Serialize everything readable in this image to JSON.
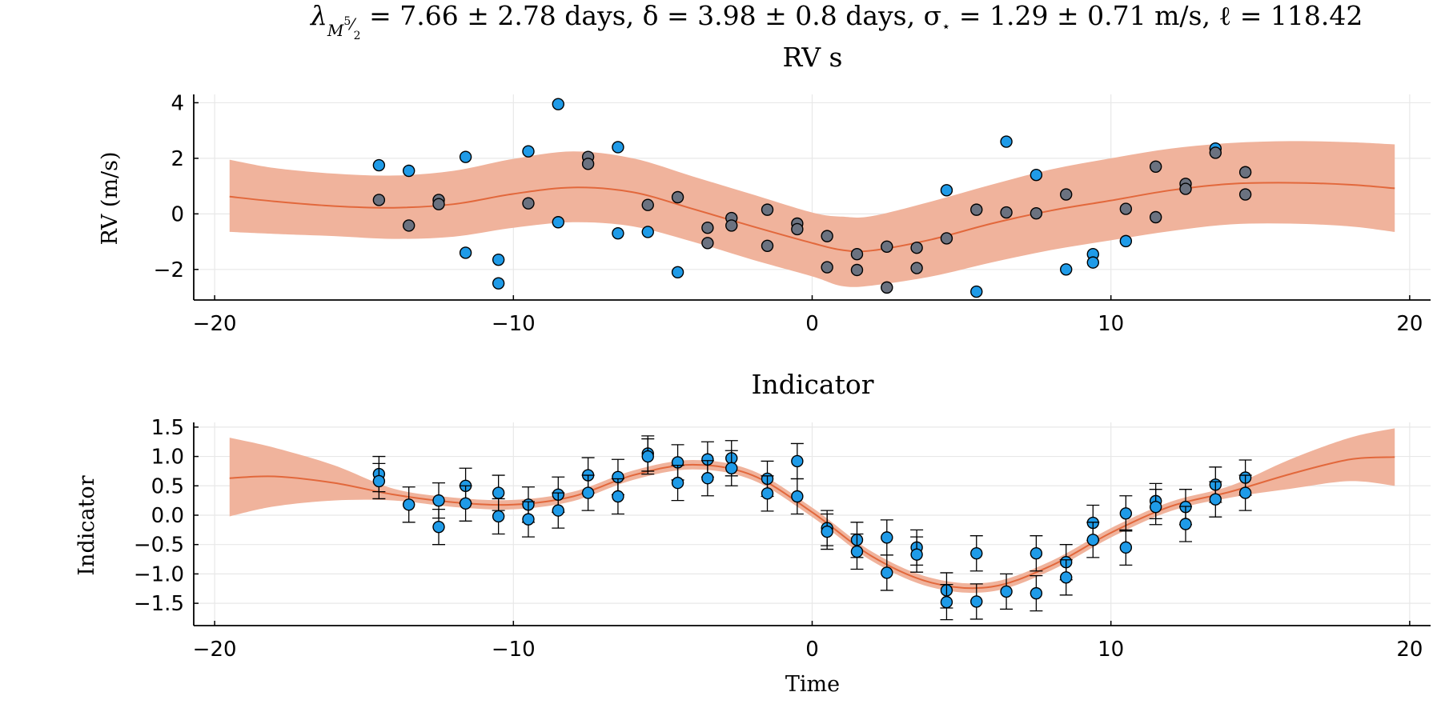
{
  "figure": {
    "suptitle_parts": {
      "lambda_sym": "λ",
      "lambda_sub": "M",
      "lambda_sup": "5",
      "lambda_frac_tail": "⁄",
      "lambda_frac_den": "2",
      "lambda_value": " = 7.66 ± 2.78 days,  δ = 3.98 ± 0.8 days,  σ",
      "sigma_sub": "⋆",
      "sigma_value": " = 1.29 ± 0.71 m/s,  ℓ = 118.42"
    },
    "colors": {
      "band": "#f0b39c",
      "line": "#e2683c",
      "marker": "#1f9be8",
      "marker_prior": "#6b7280",
      "error": "#000000",
      "grid": "#e8e8e8"
    }
  },
  "chart_data": [
    {
      "type": "scatter",
      "title": "RV s",
      "xlabel": "",
      "ylabel": "RV (m/s)",
      "xlim": [
        -20.7,
        20.7
      ],
      "ylim": [
        -3.1,
        4.3
      ],
      "xticks": [
        -20,
        -10,
        0,
        10,
        20
      ],
      "xticklabels": [
        "−20",
        "−10",
        "0",
        "10",
        "20"
      ],
      "yticks": [
        -2,
        0,
        2,
        4
      ],
      "yticklabels": [
        "−2",
        "0",
        "2",
        "4"
      ],
      "grid": true,
      "legend": "none",
      "model": {
        "x": [
          -19.5,
          -18,
          -16,
          -14,
          -12,
          -10,
          -8,
          -6,
          -4,
          -2,
          0,
          1,
          2,
          4,
          6,
          8,
          10,
          12,
          14,
          16,
          18,
          19.5
        ],
        "y": [
          0.62,
          0.45,
          0.28,
          0.22,
          0.35,
          0.72,
          0.95,
          0.78,
          0.18,
          -0.45,
          -1.05,
          -1.3,
          -1.32,
          -0.92,
          -0.35,
          0.12,
          0.48,
          0.85,
          1.08,
          1.12,
          1.05,
          0.92
        ],
        "upper": [
          1.95,
          1.65,
          1.45,
          1.38,
          1.55,
          1.98,
          2.25,
          2.0,
          1.35,
          0.7,
          0.05,
          -0.1,
          -0.08,
          0.45,
          1.05,
          1.6,
          2.0,
          2.35,
          2.55,
          2.62,
          2.58,
          2.5
        ],
        "lower": [
          -0.65,
          -0.72,
          -0.8,
          -0.9,
          -0.82,
          -0.5,
          -0.3,
          -0.45,
          -1.0,
          -1.65,
          -2.25,
          -2.6,
          -2.58,
          -2.25,
          -1.75,
          -1.3,
          -0.95,
          -0.62,
          -0.38,
          -0.35,
          -0.45,
          -0.65
        ]
      },
      "series": [
        {
          "x": [
            -14.5,
            -13.5,
            -11.6,
            -11.6,
            -10.5,
            -10.5,
            -9.5,
            -8.5,
            -8.5,
            -6.5,
            -6.5,
            -5.5,
            -4.5,
            5.5,
            6.5,
            4.5,
            7.5,
            8.5,
            9.4,
            9.4,
            10.5,
            13.5
          ],
          "y": [
            1.75,
            1.55,
            2.05,
            -1.4,
            -1.65,
            -2.5,
            2.25,
            3.95,
            -0.3,
            2.4,
            -0.7,
            -0.65,
            -2.1,
            -2.8,
            2.6,
            0.85,
            1.4,
            -2.0,
            -1.45,
            -1.75,
            -0.98,
            2.35
          ]
        },
        {
          "x": [
            -14.5,
            -13.5,
            -12.5,
            -12.5,
            -9.5,
            -7.5,
            -7.5,
            -5.5,
            -4.5,
            -3.5,
            -3.5,
            -2.7,
            -2.7,
            -1.5,
            -1.5,
            -0.5,
            -0.5,
            0.5,
            0.5,
            1.5,
            1.5,
            2.5,
            2.5,
            3.5,
            3.5,
            4.5,
            5.5,
            6.5,
            7.5,
            8.5,
            10.5,
            11.5,
            11.5,
            12.5,
            12.5,
            13.5,
            14.5,
            14.5
          ],
          "y": [
            0.5,
            -0.42,
            0.5,
            0.35,
            0.38,
            2.05,
            1.8,
            0.32,
            0.6,
            -0.5,
            -1.05,
            -0.15,
            -0.42,
            0.15,
            -1.15,
            -0.35,
            -0.55,
            -0.8,
            -1.92,
            -1.45,
            -2.02,
            -1.18,
            -2.65,
            -1.22,
            -1.95,
            -0.88,
            0.15,
            0.05,
            0.02,
            0.7,
            0.18,
            1.7,
            -0.12,
            1.08,
            0.9,
            2.2,
            1.5,
            0.7
          ]
        }
      ]
    },
    {
      "type": "scatter",
      "title": "Indicator",
      "xlabel": "Time",
      "ylabel": "Indicator",
      "xlim": [
        -20.7,
        20.7
      ],
      "ylim": [
        -1.88,
        1.58
      ],
      "xticks": [
        -20,
        -10,
        0,
        10,
        20
      ],
      "xticklabels": [
        "−20",
        "−10",
        "0",
        "10",
        "20"
      ],
      "yticks": [
        -1.5,
        -1.0,
        -0.5,
        0.0,
        0.5,
        1.0,
        1.5
      ],
      "yticklabels": [
        "−1.5",
        "−1.0",
        "−0.5",
        "0.0",
        "0.5",
        "1.0",
        "1.5"
      ],
      "grid": true,
      "legend": "none",
      "model": {
        "x": [
          -19.5,
          -18,
          -16,
          -14,
          -12,
          -10,
          -8,
          -6,
          -4,
          -2,
          0,
          2,
          4,
          6,
          8,
          10,
          12,
          14,
          16,
          18,
          19.5
        ],
        "y": [
          0.63,
          0.66,
          0.55,
          0.35,
          0.22,
          0.18,
          0.32,
          0.68,
          0.86,
          0.68,
          0.05,
          -0.7,
          -1.15,
          -1.22,
          -0.86,
          -0.3,
          0.15,
          0.4,
          0.7,
          0.95,
          0.99
        ],
        "upper": [
          1.32,
          1.15,
          0.85,
          0.45,
          0.3,
          0.26,
          0.4,
          0.76,
          0.94,
          0.76,
          0.13,
          -0.62,
          -1.07,
          -1.14,
          -0.78,
          -0.22,
          0.23,
          0.5,
          0.95,
          1.32,
          1.48
        ],
        "lower": [
          -0.02,
          0.15,
          0.25,
          0.25,
          0.14,
          0.1,
          0.24,
          0.6,
          0.78,
          0.6,
          -0.03,
          -0.78,
          -1.23,
          -1.3,
          -0.94,
          -0.38,
          0.07,
          0.3,
          0.45,
          0.58,
          0.5
        ]
      },
      "error": 0.3,
      "series": [
        {
          "x": [
            -14.5,
            -14.5,
            -13.5,
            -12.5,
            -12.5,
            -11.6,
            -11.6,
            -10.5,
            -10.5,
            -9.5,
            -9.5,
            -8.5,
            -8.5,
            -7.5,
            -7.5,
            -6.5,
            -6.5,
            -5.5,
            -5.5,
            -4.5,
            -4.5,
            -3.5,
            -3.5,
            -2.7,
            -2.7,
            -1.5,
            -1.5,
            -0.5,
            -0.5,
            0.5,
            0.5,
            1.5,
            1.5,
            2.5,
            2.5,
            3.5,
            3.5,
            4.5,
            4.5,
            5.5,
            5.5,
            6.5,
            7.5,
            7.5,
            8.5,
            8.5,
            9.4,
            9.4,
            10.5,
            10.5,
            11.5,
            11.5,
            12.5,
            12.5,
            13.5,
            13.5,
            14.5,
            14.5
          ],
          "y": [
            0.7,
            0.58,
            0.18,
            0.25,
            -0.2,
            0.5,
            0.2,
            0.38,
            -0.02,
            0.18,
            -0.07,
            0.35,
            0.08,
            0.68,
            0.38,
            0.65,
            0.32,
            1.05,
            1.0,
            0.9,
            0.55,
            0.95,
            0.63,
            0.97,
            0.8,
            0.62,
            0.37,
            0.92,
            0.32,
            -0.22,
            -0.28,
            -0.42,
            -0.62,
            -0.38,
            -0.98,
            -0.55,
            -0.67,
            -1.28,
            -1.48,
            -0.65,
            -1.47,
            -1.3,
            -0.65,
            -1.33,
            -0.8,
            -1.06,
            -0.13,
            -0.42,
            0.03,
            -0.55,
            0.24,
            0.14,
            0.14,
            -0.15,
            0.52,
            0.27,
            0.64,
            0.38
          ]
        }
      ]
    }
  ]
}
